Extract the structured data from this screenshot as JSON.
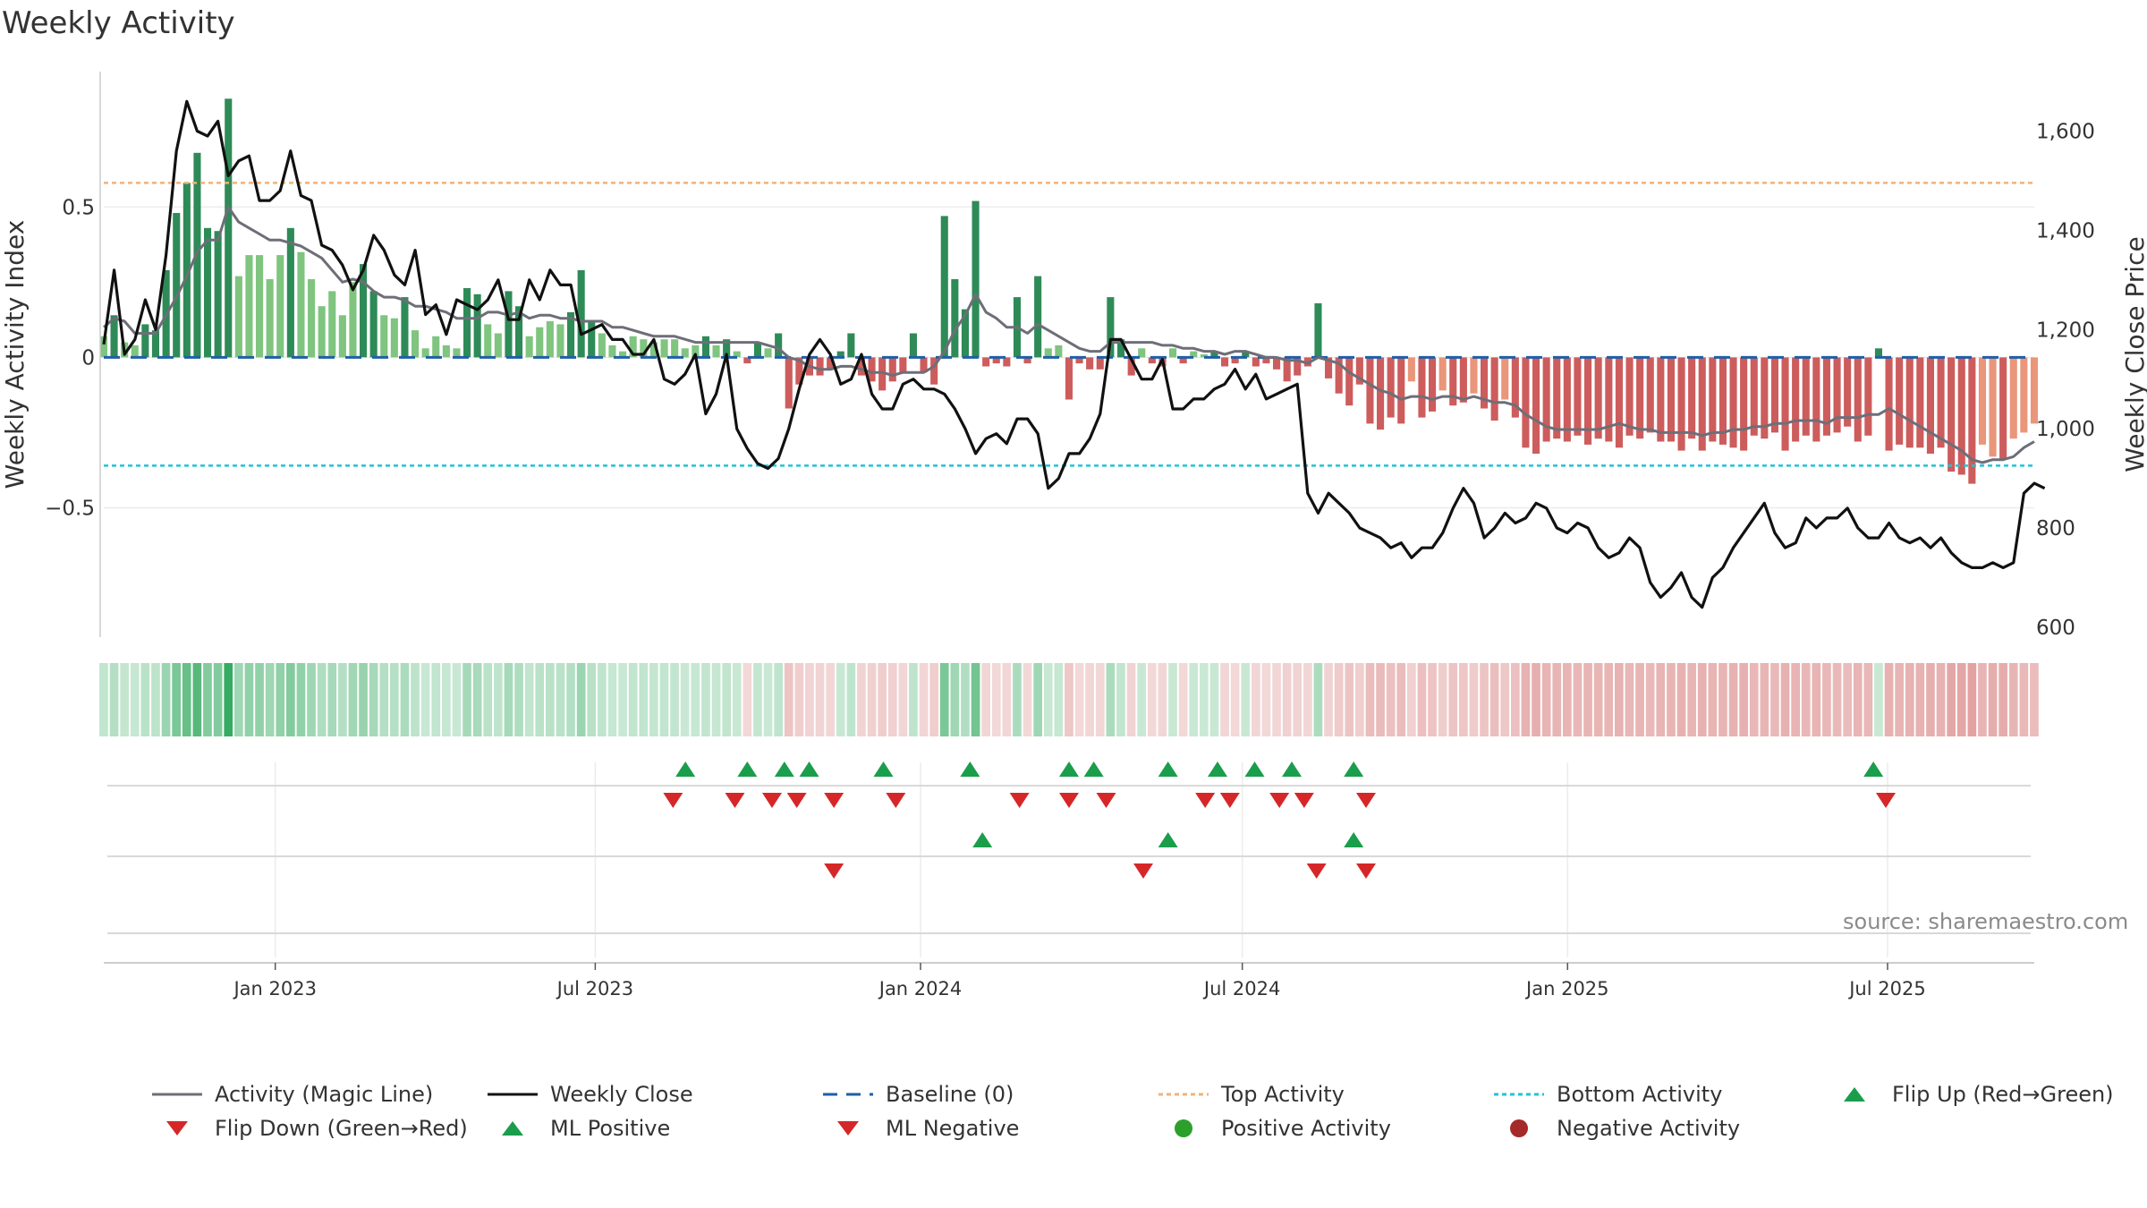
{
  "title": "Weekly Activity",
  "source": "source: sharemaestro.com",
  "colors": {
    "green_dark": "#2e8b57",
    "green_light": "#7fc47f",
    "red_dark": "#cd5c5c",
    "red_light": "#e9967a",
    "magic_line": "#6e6e78",
    "close_line": "#111111",
    "baseline": "#1f5fa8",
    "top_line": "#f0b27a",
    "bottom_line": "#22c3d6",
    "marker_up": "#1a9e4b",
    "marker_down": "#d62728",
    "pos_dot": "#2ca02c",
    "neg_dot": "#a52a2a"
  },
  "legend": [
    {
      "label": "Activity (Magic Line)",
      "symbol": "line",
      "color": "#6e6e78"
    },
    {
      "label": "Weekly Close",
      "symbol": "line",
      "color": "#111111"
    },
    {
      "label": "Baseline (0)",
      "symbol": "dash",
      "color": "#1f5fa8"
    },
    {
      "label": "Top Activity",
      "symbol": "dot-line",
      "color": "#f0b27a"
    },
    {
      "label": "Bottom Activity",
      "symbol": "dot-line",
      "color": "#22c3d6"
    },
    {
      "label": "Flip Up (Red→Green)",
      "symbol": "tri-up",
      "color": "#1a9e4b"
    },
    {
      "label": "Flip Down (Green→Red)",
      "symbol": "tri-down",
      "color": "#d62728"
    },
    {
      "label": "ML Positive",
      "symbol": "tri-up",
      "color": "#1a9e4b"
    },
    {
      "label": "ML Negative",
      "symbol": "tri-down",
      "color": "#d62728"
    },
    {
      "label": "Positive Activity",
      "symbol": "circle",
      "color": "#2ca02c"
    },
    {
      "label": "Negative Activity",
      "symbol": "circle",
      "color": "#a52a2a"
    }
  ],
  "chart_data": {
    "type": "bar",
    "title": "Weekly Activity",
    "ylabel": "Weekly Activity Index",
    "y2label": "Weekly Close Price",
    "ylim": [
      -0.93,
      0.95
    ],
    "y2lim": [
      580,
      1720
    ],
    "yticks": [
      {
        "v": 0.5,
        "label": "0.5"
      },
      {
        "v": 0,
        "label": "0"
      },
      {
        "v": -0.5,
        "label": "−0.5"
      }
    ],
    "y2ticks": [
      {
        "v": 600,
        "label": "600"
      },
      {
        "v": 800,
        "label": "800"
      },
      {
        "v": 1000,
        "label": "1,000"
      },
      {
        "v": 1200,
        "label": "1,200"
      },
      {
        "v": 1400,
        "label": "1,400"
      },
      {
        "v": 1600,
        "label": "1,600"
      }
    ],
    "x_start": "2022-09-26",
    "x_end": "2025-09-22",
    "xticks": [
      {
        "date": "2023-01-01",
        "label": "Jan 2023"
      },
      {
        "date": "2023-07-01",
        "label": "Jul 2023"
      },
      {
        "date": "2024-01-01",
        "label": "Jan 2024"
      },
      {
        "date": "2024-07-01",
        "label": "Jul 2024"
      },
      {
        "date": "2025-01-01",
        "label": "Jan 2025"
      },
      {
        "date": "2025-07-01",
        "label": "Jul 2025"
      }
    ],
    "top_activity": 0.58,
    "bottom_activity": -0.36,
    "baseline": 0,
    "activity": [
      0.07,
      0.14,
      0.05,
      0.04,
      0.11,
      0.09,
      0.29,
      0.48,
      0.58,
      0.68,
      0.43,
      0.42,
      0.86,
      0.27,
      0.34,
      0.34,
      0.26,
      0.34,
      0.43,
      0.35,
      0.26,
      0.17,
      0.22,
      0.14,
      0.25,
      0.31,
      0.22,
      0.14,
      0.13,
      0.2,
      0.09,
      0.03,
      0.07,
      0.04,
      0.03,
      0.23,
      0.21,
      0.11,
      0.08,
      0.22,
      0.17,
      0.07,
      0.1,
      0.12,
      0.11,
      0.15,
      0.29,
      0.12,
      0.08,
      0.04,
      0.02,
      0.07,
      0.06,
      0.05,
      0.06,
      0.06,
      0.03,
      0.04,
      0.07,
      0.04,
      0.06,
      0.02,
      -0.02,
      0.05,
      0.03,
      0.08,
      -0.17,
      -0.09,
      -0.06,
      -0.06,
      -0.04,
      0.02,
      0.08,
      -0.06,
      -0.08,
      -0.11,
      -0.08,
      -0.05,
      0.08,
      -0.05,
      -0.09,
      0.47,
      0.26,
      0.16,
      0.52,
      -0.03,
      -0.02,
      -0.03,
      0.2,
      -0.02,
      0.27,
      0.03,
      0.04,
      -0.14,
      -0.02,
      -0.04,
      -0.04,
      0.2,
      0.06,
      -0.06,
      0.03,
      -0.02,
      -0.03,
      0.03,
      -0.02,
      0.02,
      0.01,
      0.02,
      -0.03,
      -0.02,
      0.02,
      -0.03,
      -0.02,
      -0.04,
      -0.08,
      -0.06,
      -0.03,
      0.18,
      -0.07,
      -0.12,
      -0.16,
      -0.09,
      -0.22,
      -0.24,
      -0.2,
      -0.22,
      -0.08,
      -0.2,
      -0.18,
      -0.11,
      -0.16,
      -0.15,
      -0.12,
      -0.17,
      -0.21,
      -0.14,
      -0.2,
      -0.3,
      -0.32,
      -0.28,
      -0.27,
      -0.28,
      -0.26,
      -0.29,
      -0.27,
      -0.28,
      -0.3,
      -0.26,
      -0.27,
      -0.25,
      -0.28,
      -0.28,
      -0.31,
      -0.27,
      -0.31,
      -0.28,
      -0.29,
      -0.3,
      -0.31,
      -0.26,
      -0.27,
      -0.25,
      -0.31,
      -0.28,
      -0.26,
      -0.28,
      -0.26,
      -0.25,
      -0.23,
      -0.28,
      -0.26,
      0.03,
      -0.31,
      -0.29,
      -0.3,
      -0.3,
      -0.32,
      -0.3,
      -0.38,
      -0.39,
      -0.42,
      -0.29,
      -0.33,
      -0.34,
      -0.27,
      -0.25,
      -0.22
    ],
    "magic_line": [
      0.1,
      0.13,
      0.12,
      0.08,
      0.08,
      0.08,
      0.14,
      0.2,
      0.27,
      0.35,
      0.39,
      0.39,
      0.5,
      0.45,
      0.43,
      0.41,
      0.39,
      0.39,
      0.38,
      0.37,
      0.35,
      0.33,
      0.29,
      0.25,
      0.26,
      0.25,
      0.22,
      0.2,
      0.2,
      0.19,
      0.17,
      0.17,
      0.16,
      0.15,
      0.13,
      0.13,
      0.13,
      0.15,
      0.15,
      0.14,
      0.15,
      0.13,
      0.14,
      0.14,
      0.13,
      0.13,
      0.12,
      0.12,
      0.12,
      0.1,
      0.1,
      0.09,
      0.08,
      0.07,
      0.07,
      0.07,
      0.06,
      0.05,
      0.05,
      0.05,
      0.05,
      0.05,
      0.05,
      0.05,
      0.04,
      0.03,
      0.0,
      -0.01,
      -0.03,
      -0.04,
      -0.04,
      -0.03,
      -0.03,
      -0.04,
      -0.05,
      -0.05,
      -0.06,
      -0.05,
      -0.05,
      -0.05,
      -0.03,
      0.02,
      0.09,
      0.14,
      0.21,
      0.15,
      0.13,
      0.1,
      0.1,
      0.08,
      0.11,
      0.09,
      0.07,
      0.05,
      0.03,
      0.02,
      0.02,
      0.05,
      0.05,
      0.05,
      0.05,
      0.05,
      0.04,
      0.04,
      0.03,
      0.03,
      0.02,
      0.02,
      0.01,
      0.02,
      0.02,
      0.01,
      0.0,
      0.0,
      -0.01,
      -0.01,
      -0.02,
      0.0,
      -0.01,
      -0.02,
      -0.05,
      -0.07,
      -0.09,
      -0.11,
      -0.12,
      -0.14,
      -0.13,
      -0.13,
      -0.14,
      -0.13,
      -0.13,
      -0.14,
      -0.13,
      -0.14,
      -0.15,
      -0.15,
      -0.16,
      -0.19,
      -0.21,
      -0.23,
      -0.24,
      -0.24,
      -0.24,
      -0.24,
      -0.24,
      -0.23,
      -0.22,
      -0.23,
      -0.24,
      -0.24,
      -0.25,
      -0.25,
      -0.25,
      -0.25,
      -0.26,
      -0.25,
      -0.25,
      -0.24,
      -0.24,
      -0.23,
      -0.23,
      -0.22,
      -0.22,
      -0.21,
      -0.21,
      -0.21,
      -0.22,
      -0.2,
      -0.2,
      -0.2,
      -0.19,
      -0.19,
      -0.17,
      -0.19,
      -0.21,
      -0.23,
      -0.25,
      -0.27,
      -0.29,
      -0.31,
      -0.34,
      -0.35,
      -0.34,
      -0.34,
      -0.33,
      -0.3,
      -0.28
    ],
    "weekly_close": [
      1170,
      1320,
      1150,
      1180,
      1260,
      1200,
      1350,
      1560,
      1660,
      1600,
      1590,
      1620,
      1510,
      1540,
      1550,
      1460,
      1460,
      1480,
      1560,
      1470,
      1460,
      1370,
      1360,
      1330,
      1280,
      1320,
      1390,
      1360,
      1310,
      1290,
      1360,
      1230,
      1250,
      1190,
      1260,
      1250,
      1240,
      1260,
      1300,
      1220,
      1220,
      1300,
      1260,
      1320,
      1290,
      1290,
      1190,
      1200,
      1210,
      1180,
      1180,
      1150,
      1150,
      1180,
      1100,
      1090,
      1110,
      1150,
      1030,
      1070,
      1150,
      1000,
      960,
      930,
      920,
      940,
      1000,
      1080,
      1150,
      1180,
      1150,
      1090,
      1100,
      1150,
      1070,
      1040,
      1040,
      1090,
      1100,
      1080,
      1080,
      1070,
      1040,
      1000,
      950,
      980,
      990,
      970,
      1020,
      1020,
      990,
      880,
      900,
      950,
      950,
      980,
      1030,
      1180,
      1180,
      1140,
      1100,
      1100,
      1140,
      1040,
      1040,
      1060,
      1060,
      1080,
      1090,
      1120,
      1080,
      1110,
      1060,
      1070,
      1080,
      1090,
      870,
      830,
      870,
      850,
      830,
      800,
      790,
      780,
      760,
      770,
      740,
      760,
      760,
      790,
      840,
      880,
      850,
      780,
      800,
      830,
      810,
      820,
      850,
      840,
      800,
      790,
      810,
      800,
      760,
      740,
      750,
      780,
      760,
      690,
      660,
      680,
      710,
      660,
      640,
      700,
      720,
      760,
      790,
      820,
      850,
      790,
      760,
      770,
      820,
      800,
      820,
      820,
      840,
      800,
      780,
      780,
      810,
      780,
      770,
      780,
      760,
      780,
      750,
      730,
      720,
      720,
      730,
      720,
      730,
      870,
      890,
      880
    ],
    "heatmap_strip": {
      "label": "activity heat strip",
      "values_from": "activity"
    },
    "flip_up": [
      "2023-08-21",
      "2023-09-25",
      "2023-10-16",
      "2023-10-30",
      "2023-12-11",
      "2024-01-29",
      "2024-03-25",
      "2024-04-08",
      "2024-05-20",
      "2024-06-17",
      "2024-07-08",
      "2024-07-29",
      "2024-09-02",
      "2025-06-23"
    ],
    "flip_down": [
      "2023-08-14",
      "2023-09-18",
      "2023-10-09",
      "2023-10-23",
      "2023-11-13",
      "2023-12-18",
      "2024-02-26",
      "2024-03-25",
      "2024-04-15",
      "2024-06-10",
      "2024-06-24",
      "2024-07-22",
      "2024-08-05",
      "2024-09-09",
      "2025-06-30"
    ],
    "ml_positive": [
      "2024-02-05",
      "2024-05-20",
      "2024-09-02"
    ],
    "ml_negative": [
      "2023-11-13",
      "2024-05-06",
      "2024-08-12",
      "2024-09-09"
    ]
  }
}
